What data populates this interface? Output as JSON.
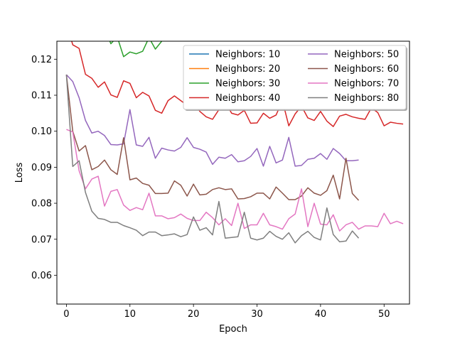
{
  "chart_data": {
    "type": "line",
    "title": "",
    "xlabel": "Epoch",
    "ylabel": "Loss",
    "xlim": [
      -1.5,
      54
    ],
    "ylim": [
      0.052,
      0.125
    ],
    "xticks": [
      0,
      10,
      20,
      30,
      40,
      50
    ],
    "yticks": [
      0.06,
      0.07,
      0.08,
      0.09,
      0.1,
      0.11,
      0.12
    ],
    "ytick_labels": [
      "0.06",
      "0.07",
      "0.08",
      "0.09",
      "0.10",
      "0.11",
      "0.12"
    ],
    "grid": false,
    "legend": {
      "placement": "top-right",
      "columns": 2
    },
    "series": [
      {
        "name": "Neighbors: 10",
        "color": "#1f77b4",
        "x": [],
        "y": []
      },
      {
        "name": "Neighbors: 20",
        "color": "#ff7f0e",
        "x": [],
        "y": []
      },
      {
        "name": "Neighbors: 30",
        "color": "#2ca02c",
        "x": [
          6,
          7,
          8,
          9,
          10,
          11,
          12,
          13,
          14,
          15,
          16
        ],
        "y": [
          0.1285,
          0.1243,
          0.1262,
          0.1207,
          0.122,
          0.1215,
          0.1222,
          0.126,
          0.1228,
          0.125,
          0.129
        ]
      },
      {
        "name": "Neighbors: 40",
        "color": "#d62728",
        "x": [
          0,
          1,
          2,
          3,
          4,
          5,
          6,
          7,
          8,
          9,
          10,
          11,
          12,
          13,
          14,
          15,
          16,
          17,
          18,
          19,
          20,
          21,
          22,
          23,
          24,
          25,
          26,
          27,
          28,
          29,
          30,
          31,
          32,
          33,
          34,
          35,
          36,
          37,
          38,
          39,
          40,
          41,
          42,
          43,
          44,
          45,
          46,
          47,
          48,
          49,
          50,
          51,
          52,
          53
        ],
        "y": [
          0.13,
          0.124,
          0.123,
          0.1158,
          0.1147,
          0.1122,
          0.1137,
          0.1101,
          0.1094,
          0.114,
          0.1133,
          0.1093,
          0.1108,
          0.1098,
          0.1058,
          0.105,
          0.1085,
          0.1098,
          0.1085,
          0.1072,
          0.1088,
          0.1055,
          0.104,
          0.1033,
          0.106,
          0.1082,
          0.105,
          0.1045,
          0.1058,
          0.1022,
          0.1023,
          0.105,
          0.1036,
          0.1045,
          0.1085,
          0.1015,
          0.1048,
          0.107,
          0.1037,
          0.103,
          0.1055,
          0.1028,
          0.1013,
          0.1042,
          0.1047,
          0.104,
          0.1036,
          0.1033,
          0.1065,
          0.1052,
          0.1015,
          0.1025,
          0.1022,
          0.102
        ]
      },
      {
        "name": "Neighbors: 50",
        "color": "#9467bd",
        "x": [
          0,
          1,
          2,
          3,
          4,
          5,
          6,
          7,
          8,
          9,
          10,
          11,
          12,
          13,
          14,
          15,
          16,
          17,
          18,
          19,
          20,
          21,
          22,
          23,
          24,
          25,
          26,
          27,
          28,
          29,
          30,
          31,
          32,
          33,
          34,
          35,
          36,
          37,
          38,
          39,
          40,
          41,
          42,
          43,
          44,
          45,
          46
        ],
        "y": [
          0.1157,
          0.1138,
          0.1093,
          0.103,
          0.0995,
          0.1,
          0.0988,
          0.0963,
          0.0962,
          0.0965,
          0.106,
          0.0962,
          0.0958,
          0.0983,
          0.0925,
          0.0953,
          0.0948,
          0.0945,
          0.0955,
          0.0982,
          0.0955,
          0.095,
          0.0942,
          0.0908,
          0.0928,
          0.0925,
          0.0935,
          0.0915,
          0.0918,
          0.093,
          0.0952,
          0.0903,
          0.0958,
          0.0912,
          0.092,
          0.0983,
          0.0903,
          0.0905,
          0.0922,
          0.0925,
          0.0938,
          0.0922,
          0.0952,
          0.0938,
          0.0918,
          0.0918,
          0.092
        ]
      },
      {
        "name": "Neighbors: 60",
        "color": "#8c564b",
        "x": [
          0,
          1,
          2,
          3,
          4,
          5,
          6,
          7,
          8,
          9,
          10,
          11,
          12,
          13,
          14,
          15,
          16,
          17,
          18,
          19,
          20,
          21,
          22,
          23,
          24,
          25,
          26,
          27,
          28,
          29,
          30,
          31,
          32,
          33,
          34,
          35,
          36,
          37,
          38,
          39,
          40,
          41,
          42,
          43,
          44,
          45,
          46
        ],
        "y": [
          0.1157,
          0.1,
          0.0945,
          0.096,
          0.0893,
          0.0902,
          0.092,
          0.0893,
          0.088,
          0.0982,
          0.0865,
          0.087,
          0.0855,
          0.085,
          0.0827,
          0.0827,
          0.0828,
          0.0862,
          0.085,
          0.082,
          0.0853,
          0.0823,
          0.0825,
          0.0838,
          0.0843,
          0.0838,
          0.084,
          0.0812,
          0.0813,
          0.0818,
          0.0828,
          0.0828,
          0.0812,
          0.0845,
          0.0828,
          0.081,
          0.081,
          0.082,
          0.0843,
          0.0828,
          0.0822,
          0.0835,
          0.0878,
          0.0812,
          0.0925,
          0.0827,
          0.0808
        ]
      },
      {
        "name": "Neighbors: 70",
        "color": "#e377c2",
        "x": [
          0,
          1,
          2,
          3,
          4,
          5,
          6,
          7,
          8,
          9,
          10,
          11,
          12,
          13,
          14,
          15,
          16,
          17,
          18,
          19,
          20,
          21,
          22,
          23,
          24,
          25,
          26,
          27,
          28,
          29,
          30,
          31,
          32,
          33,
          34,
          35,
          36,
          37,
          38,
          39,
          40,
          41,
          42,
          43,
          44,
          45,
          46,
          47,
          48,
          49,
          50,
          51,
          52,
          53
        ],
        "y": [
          0.1005,
          0.0998,
          0.089,
          0.084,
          0.0867,
          0.0875,
          0.0792,
          0.0833,
          0.0838,
          0.0795,
          0.078,
          0.0788,
          0.0782,
          0.0828,
          0.0765,
          0.0765,
          0.0757,
          0.076,
          0.077,
          0.0758,
          0.0752,
          0.0752,
          0.0775,
          0.076,
          0.074,
          0.0757,
          0.0738,
          0.08,
          0.073,
          0.074,
          0.074,
          0.0772,
          0.074,
          0.0735,
          0.0728,
          0.0757,
          0.077,
          0.084,
          0.0735,
          0.08,
          0.0742,
          0.074,
          0.0768,
          0.0723,
          0.074,
          0.0747,
          0.0728,
          0.0737,
          0.0737,
          0.0735,
          0.0772,
          0.0743,
          0.075,
          0.0743
        ]
      },
      {
        "name": "Neighbors: 80",
        "color": "#7f7f7f",
        "x": [
          0,
          1,
          2,
          3,
          4,
          5,
          6,
          7,
          8,
          9,
          10,
          11,
          12,
          13,
          14,
          15,
          16,
          17,
          18,
          19,
          20,
          21,
          22,
          23,
          24,
          25,
          26,
          27,
          28,
          29,
          30,
          31,
          32,
          33,
          34,
          35,
          36,
          37,
          38,
          39,
          40,
          41,
          42,
          43,
          44,
          45,
          46
        ],
        "y": [
          0.1157,
          0.0902,
          0.0918,
          0.083,
          0.0778,
          0.0758,
          0.0755,
          0.0747,
          0.0747,
          0.0738,
          0.0732,
          0.0725,
          0.071,
          0.072,
          0.072,
          0.071,
          0.0712,
          0.0715,
          0.0707,
          0.0713,
          0.0762,
          0.0725,
          0.0732,
          0.0712,
          0.0805,
          0.0703,
          0.0705,
          0.0707,
          0.0775,
          0.0703,
          0.0698,
          0.0703,
          0.0722,
          0.0708,
          0.07,
          0.0718,
          0.069,
          0.071,
          0.0722,
          0.0705,
          0.0698,
          0.0787,
          0.0713,
          0.0693,
          0.0695,
          0.0723,
          0.0703
        ]
      }
    ]
  }
}
